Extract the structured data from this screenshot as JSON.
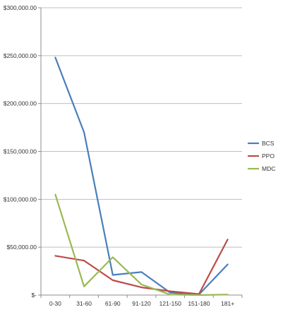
{
  "chart_data": {
    "type": "line",
    "categories": [
      "0-30",
      "31-60",
      "61-90",
      "91-120",
      "121-150",
      "151-180",
      "181+"
    ],
    "series": [
      {
        "name": "BCS",
        "color": "#4a7ebb",
        "values": [
          248000,
          170000,
          21000,
          24000,
          2500,
          500,
          32000
        ]
      },
      {
        "name": "PPO",
        "color": "#be4b48",
        "values": [
          41000,
          36000,
          15500,
          8000,
          4000,
          1000,
          58000
        ]
      },
      {
        "name": "MDC",
        "color": "#98b954",
        "values": [
          105000,
          9000,
          39500,
          11000,
          500,
          0,
          500
        ]
      }
    ],
    "ylim": [
      0,
      300000
    ],
    "y_ticks": [
      0,
      50000,
      100000,
      150000,
      200000,
      250000,
      300000
    ],
    "y_tick_labels": [
      "$-",
      "$50,000.00",
      "$100,000.00",
      "$150,000.00",
      "$200,000.00",
      "$250,000.00",
      "$300,000.00"
    ],
    "grid": true,
    "legend_position": "right",
    "gridline_color": "#bfbfbf",
    "axis_color": "#8c8c8c"
  }
}
